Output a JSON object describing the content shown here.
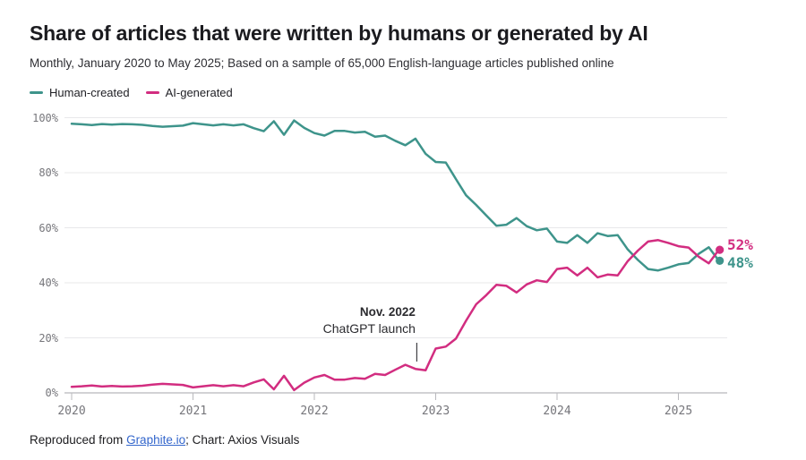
{
  "header": {
    "title": "Share of articles that were written by humans or generated by AI",
    "subtitle": "Monthly, January 2020 to May 2025; Based on a sample of 65,000 English-language articles published online"
  },
  "legend": {
    "items": [
      {
        "label": "Human-created",
        "color": "#3e948b"
      },
      {
        "label": "AI-generated",
        "color": "#d22d80"
      }
    ]
  },
  "annotation": {
    "line1": "Nov. 2022",
    "line2": "ChatGPT launch"
  },
  "footer": {
    "prefix": "Reproduced from ",
    "link_text": "Graphite.io",
    "suffix": "; Chart: Axios Visuals"
  },
  "colors": {
    "teal": "#3e948b",
    "pink": "#d22d80",
    "grid": "#e8e8ea",
    "axis": "#a6a6ab",
    "tick": "#b9b9bd",
    "axis_text": "#76767b",
    "leader_line": "#3f3f44"
  },
  "chart_data": {
    "type": "line",
    "title": "Share of articles that were written by humans or generated by AI",
    "x_start": "2020-01",
    "x_end": "2025-05",
    "x_interval": "month",
    "x_tick_labels": [
      "2020",
      "2021",
      "2022",
      "2023",
      "2024",
      "2025"
    ],
    "y_tick_labels": [
      "0%",
      "20%",
      "40%",
      "60%",
      "80%",
      "100%"
    ],
    "y_ticks": [
      0,
      20,
      40,
      60,
      80,
      100
    ],
    "ylim": [
      0,
      100
    ],
    "grid": "horizontal",
    "legend_position": "top-left",
    "annotation": {
      "text": "Nov. 2022 ChatGPT launch",
      "x_month_index": 34,
      "points_to_series": "AI-generated"
    },
    "series": [
      {
        "name": "Human-created",
        "color": "#3e948b",
        "end_label": "48%",
        "values": [
          97.8,
          97.6,
          97.3,
          97.7,
          97.5,
          97.7,
          97.6,
          97.4,
          97.0,
          96.7,
          96.9,
          97.1,
          98.0,
          97.6,
          97.2,
          97.6,
          97.2,
          97.6,
          96.2,
          95.1,
          98.7,
          93.8,
          99.0,
          96.3,
          94.4,
          93.5,
          95.2,
          95.2,
          94.6,
          94.9,
          93.1,
          93.5,
          91.6,
          90.0,
          92.4,
          86.9,
          83.9,
          83.7,
          77.7,
          71.8,
          68.3,
          64.5,
          60.7,
          61.1,
          63.5,
          60.6,
          59.1,
          59.7,
          55.0,
          54.5,
          57.3,
          54.5,
          58.0,
          57.0,
          57.3,
          52.1,
          48.3,
          45.0,
          44.5,
          45.5,
          46.7,
          47.2,
          50.5,
          52.9,
          48.0
        ]
      },
      {
        "name": "AI-generated",
        "color": "#d22d80",
        "end_label": "52%",
        "values": [
          2.2,
          2.4,
          2.7,
          2.3,
          2.5,
          2.3,
          2.4,
          2.6,
          3.0,
          3.3,
          3.1,
          2.9,
          2.0,
          2.4,
          2.8,
          2.4,
          2.8,
          2.4,
          3.8,
          4.9,
          1.3,
          6.2,
          1.0,
          3.7,
          5.6,
          6.5,
          4.8,
          4.8,
          5.4,
          5.1,
          6.9,
          6.5,
          8.4,
          10.2,
          8.7,
          8.2,
          16.1,
          16.8,
          19.7,
          26.2,
          32.2,
          35.5,
          39.3,
          38.9,
          36.5,
          39.4,
          40.9,
          40.3,
          45.0,
          45.5,
          42.7,
          45.5,
          42.0,
          43.0,
          42.7,
          47.9,
          51.7,
          55.0,
          55.5,
          54.5,
          53.3,
          52.8,
          49.5,
          47.1,
          52.0
        ]
      }
    ]
  }
}
